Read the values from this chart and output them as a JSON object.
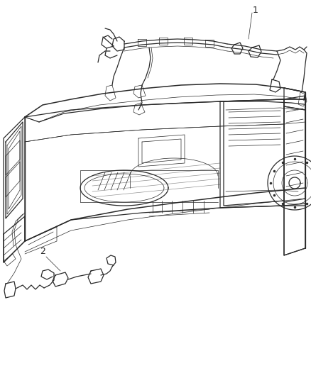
{
  "background_color": "#ffffff",
  "line_color": "#2a2a2a",
  "label_1_text": "1",
  "label_2_text": "2",
  "figsize": [
    4.38,
    5.33
  ],
  "dpi": 100,
  "lw_main": 0.9,
  "lw_thin": 0.5,
  "lw_thick": 1.1
}
